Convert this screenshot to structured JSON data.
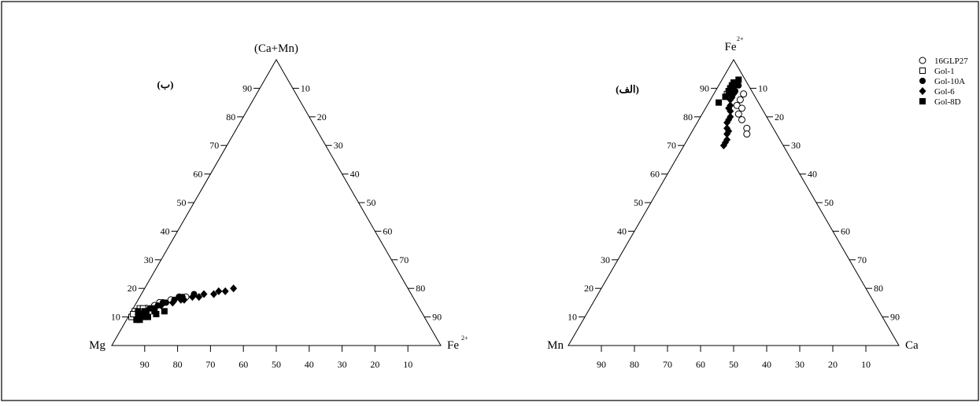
{
  "legend": [
    {
      "name": "16GLP27",
      "marker": "circle-open"
    },
    {
      "name": "Gol-1",
      "marker": "square-open"
    },
    {
      "name": "Gol-10A",
      "marker": "circle-filled"
    },
    {
      "name": "Gol-6",
      "marker": "diamond-filled"
    },
    {
      "name": "Gol-8D",
      "marker": "square-filled"
    }
  ],
  "chart_data": [
    {
      "type": "scatter",
      "subtype": "ternary",
      "panel_label": "(ب)",
      "apex_top": "(Ca+Mn)",
      "apex_left": "Mg",
      "apex_right_base": "Fe",
      "apex_right_sup": "2+",
      "left_edge_ticks": [
        "10",
        "20",
        "30",
        "40",
        "50",
        "60",
        "70",
        "80",
        "90"
      ],
      "right_edge_ticks": [
        "10",
        "20",
        "30",
        "40",
        "50",
        "60",
        "70",
        "80",
        "90"
      ],
      "bottom_edge_ticks": [
        "10",
        "20",
        "30",
        "40",
        "50",
        "60",
        "70",
        "80",
        "90"
      ],
      "series": [
        {
          "name": "16GLP27",
          "points": [
            [
              17,
              12
            ],
            [
              16,
              10
            ],
            [
              15,
              8
            ],
            [
              14,
              6
            ],
            [
              13,
              4
            ],
            [
              12,
              3
            ],
            [
              17,
              14
            ],
            [
              15,
              7
            ]
          ]
        },
        {
          "name": "Gol-1",
          "points": [
            [
              13,
              2
            ],
            [
              12,
              1
            ],
            [
              11,
              2
            ],
            [
              10,
              1
            ],
            [
              13,
              3
            ],
            [
              11,
              1
            ]
          ]
        },
        {
          "name": "Gol-10A",
          "points": [
            [
              18,
              16
            ],
            [
              17,
              13
            ],
            [
              16,
              11
            ],
            [
              15,
              9
            ],
            [
              14,
              7
            ],
            [
              13,
              5
            ],
            [
              17,
              12
            ],
            [
              15,
              8
            ]
          ]
        },
        {
          "name": "Gol-6",
          "points": [
            [
              20,
              27
            ],
            [
              19,
              25
            ],
            [
              18,
              22
            ],
            [
              18,
              19
            ],
            [
              17,
              16
            ],
            [
              16,
              13
            ],
            [
              19,
              23
            ],
            [
              17,
              18
            ],
            [
              16,
              14
            ],
            [
              15,
              11
            ],
            [
              14,
              8
            ]
          ]
        },
        {
          "name": "Gol-8D",
          "points": [
            [
              12,
              10
            ],
            [
              11,
              8
            ],
            [
              10,
              6
            ],
            [
              12,
              7
            ],
            [
              11,
              5
            ],
            [
              13,
              6
            ],
            [
              12,
              4
            ],
            [
              10,
              3
            ],
            [
              9,
              4
            ],
            [
              11,
              3
            ],
            [
              12,
              2
            ],
            [
              10,
              5
            ],
            [
              9,
              3
            ]
          ]
        }
      ]
    },
    {
      "type": "scatter",
      "subtype": "ternary",
      "panel_label": "(الف)",
      "apex_top_base": "Fe",
      "apex_top_sup": "2+",
      "apex_left": "Mn",
      "apex_right": "Ca",
      "left_edge_ticks": [
        "10",
        "20",
        "30",
        "40",
        "50",
        "60",
        "70",
        "80",
        "90"
      ],
      "right_edge_ticks": [
        "10",
        "20",
        "30",
        "40",
        "50",
        "60",
        "70",
        "80",
        "90"
      ],
      "bottom_edge_ticks": [
        "10",
        "20",
        "30",
        "40",
        "50",
        "60",
        "70",
        "80",
        "90"
      ],
      "series": [
        {
          "name": "16GLP27",
          "points": [
            [
              88,
              9
            ],
            [
              86,
              9
            ],
            [
              84,
              9
            ],
            [
              81,
              11
            ],
            [
              79,
              13
            ],
            [
              76,
              16
            ],
            [
              74,
              17
            ],
            [
              83,
              11
            ]
          ]
        },
        {
          "name": "Gol-1",
          "points": [
            [
              91,
              4
            ],
            [
              90,
              4
            ],
            [
              88,
              4
            ]
          ]
        },
        {
          "name": "Gol-10A",
          "points": [
            [
              92,
              5
            ],
            [
              90,
              5
            ],
            [
              91,
              6
            ],
            [
              89,
              6
            ],
            [
              87,
              6
            ],
            [
              92,
              4
            ],
            [
              88,
              5
            ]
          ]
        },
        {
          "name": "Gol-6",
          "points": [
            [
              70,
              12
            ],
            [
              72,
              12
            ],
            [
              74,
              11
            ],
            [
              76,
              10
            ],
            [
              78,
              9
            ],
            [
              80,
              9
            ],
            [
              82,
              8
            ],
            [
              84,
              7
            ],
            [
              86,
              6
            ],
            [
              88,
              6
            ],
            [
              71,
              12
            ],
            [
              75,
              11
            ],
            [
              79,
              9
            ],
            [
              83,
              7
            ],
            [
              87,
              6
            ]
          ]
        },
        {
          "name": "Gol-8D",
          "points": [
            [
              93,
              5
            ],
            [
              92,
              5
            ],
            [
              91,
              4
            ],
            [
              89,
              4
            ],
            [
              87,
              4
            ],
            [
              85,
              3
            ],
            [
              92,
              4
            ],
            [
              90,
              4
            ]
          ]
        }
      ]
    }
  ]
}
